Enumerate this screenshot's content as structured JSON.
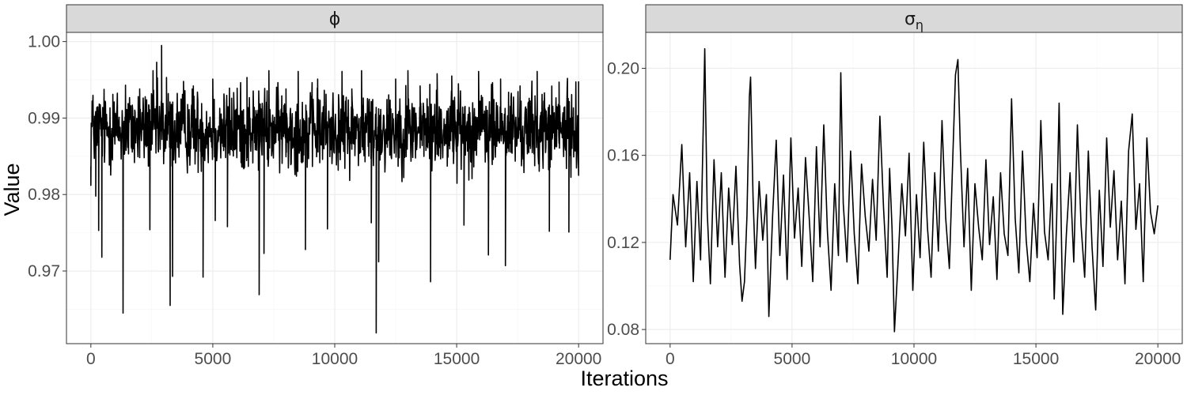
{
  "chart_data": {
    "type": "line",
    "xlabel": "Iterations",
    "ylabel": "Value",
    "grid": true,
    "panels": [
      {
        "strip_label": "ϕ",
        "strip_sub": "",
        "xlim": [
          -1000,
          21000
        ],
        "ylim": [
          0.9605,
          1.0012
        ],
        "x_ticks": [
          0,
          5000,
          10000,
          15000,
          20000
        ],
        "x_tick_labels": [
          "0",
          "5000",
          "10000",
          "15000",
          "20000"
        ],
        "y_ticks": [
          0.97,
          0.98,
          0.99,
          1.0
        ],
        "y_tick_labels": [
          "0.97",
          "0.98",
          "0.99",
          "1.00"
        ],
        "series": [
          {
            "trace_mean": 0.9885,
            "trace_spread": 0.0042,
            "x_range": [
              0,
              20000
            ],
            "points": [
              [
                0,
                0.9812
              ],
              [
                50,
                0.9922
              ],
              [
                100,
                0.9903
              ],
              [
                200,
                0.9798
              ],
              [
                320,
                0.9753
              ],
              [
                450,
                0.9718
              ],
              [
                540,
                0.9935
              ],
              [
                900,
                0.9931
              ],
              [
                1320,
                0.9645
              ],
              [
                1420,
                0.9943
              ],
              [
                1700,
                0.9917
              ],
              [
                2000,
                0.9938
              ],
              [
                2420,
                0.9754
              ],
              [
                2550,
                0.9962
              ],
              [
                2700,
                0.9973
              ],
              [
                2900,
                0.9995
              ],
              [
                3100,
                0.9953
              ],
              [
                3250,
                0.9655
              ],
              [
                3350,
                0.9693
              ],
              [
                3800,
                0.9948
              ],
              [
                4200,
                0.9942
              ],
              [
                4600,
                0.9692
              ],
              [
                5000,
                0.9951
              ],
              [
                5100,
                0.9766
              ],
              [
                5600,
                0.9758
              ],
              [
                6000,
                0.9939
              ],
              [
                6400,
                0.9953
              ],
              [
                6900,
                0.9669
              ],
              [
                7100,
                0.9723
              ],
              [
                7300,
                0.9962
              ],
              [
                8000,
                0.9938
              ],
              [
                8500,
                0.9961
              ],
              [
                8800,
                0.9728
              ],
              [
                9300,
                0.9951
              ],
              [
                9700,
                0.9755
              ],
              [
                10300,
                0.9961
              ],
              [
                10700,
                0.9938
              ],
              [
                11100,
                0.9962
              ],
              [
                11500,
                0.9763
              ],
              [
                11700,
                0.9619
              ],
              [
                11800,
                0.9712
              ],
              [
                12500,
                0.9951
              ],
              [
                13000,
                0.9962
              ],
              [
                13500,
                0.9942
              ],
              [
                13930,
                0.9686
              ],
              [
                14200,
                0.9958
              ],
              [
                14800,
                0.9955
              ],
              [
                15300,
                0.976
              ],
              [
                15900,
                0.9961
              ],
              [
                16300,
                0.9721
              ],
              [
                16800,
                0.9951
              ],
              [
                17000,
                0.9707
              ],
              [
                17600,
                0.9942
              ],
              [
                18300,
                0.9961
              ],
              [
                18800,
                0.9752
              ],
              [
                19200,
                0.9947
              ],
              [
                19600,
                0.9751
              ],
              [
                20000,
                0.9948
              ]
            ]
          }
        ]
      },
      {
        "strip_label": "σ",
        "strip_sub": "η",
        "xlim": [
          -1000,
          21000
        ],
        "ylim": [
          0.0735,
          0.2165
        ],
        "x_ticks": [
          0,
          5000,
          10000,
          15000,
          20000
        ],
        "x_tick_labels": [
          "0",
          "5000",
          "10000",
          "15000",
          "20000"
        ],
        "y_ticks": [
          0.08,
          0.12,
          0.16,
          0.2
        ],
        "y_tick_labels": [
          "0.08",
          "0.12",
          "0.16",
          "0.20"
        ],
        "series": [
          {
            "x": [
              0,
              120,
              300,
              480,
              640,
              800,
              950,
              1100,
              1250,
              1350,
              1420,
              1520,
              1650,
              1800,
              1950,
              2100,
              2250,
              2400,
              2550,
              2700,
              2850,
              2950,
              3050,
              3150,
              3250,
              3300,
              3400,
              3500,
              3650,
              3800,
              3950,
              4050,
              4200,
              4350,
              4500,
              4650,
              4800,
              4950,
              5100,
              5250,
              5400,
              5550,
              5700,
              5850,
              6000,
              6150,
              6300,
              6450,
              6600,
              6750,
              6900,
              7000,
              7100,
              7250,
              7400,
              7550,
              7700,
              7850,
              8000,
              8150,
              8300,
              8450,
              8600,
              8750,
              8900,
              9000,
              9100,
              9200,
              9350,
              9500,
              9650,
              9800,
              9950,
              10100,
              10250,
              10400,
              10550,
              10700,
              10850,
              11000,
              11150,
              11300,
              11450,
              11600,
              11700,
              11800,
              11900,
              12050,
              12200,
              12350,
              12500,
              12650,
              12800,
              12950,
              13100,
              13250,
              13400,
              13550,
              13700,
              13850,
              14000,
              14150,
              14300,
              14450,
              14600,
              14750,
              14900,
              15050,
              15200,
              15350,
              15500,
              15650,
              15750,
              15850,
              15950,
              16100,
              16250,
              16400,
              16550,
              16700,
              16850,
              17000,
              17150,
              17300,
              17450,
              17600,
              17750,
              17900,
              18050,
              18200,
              18350,
              18500,
              18650,
              18800,
              18950,
              19100,
              19250,
              19400,
              19550,
              19700,
              19850,
              20000
            ],
            "values": [
              0.112,
              0.142,
              0.128,
              0.165,
              0.118,
              0.152,
              0.102,
              0.148,
              0.112,
              0.168,
              0.209,
              0.134,
              0.101,
              0.158,
              0.118,
              0.152,
              0.104,
              0.145,
              0.119,
              0.155,
              0.11,
              0.093,
              0.102,
              0.132,
              0.187,
              0.196,
              0.141,
              0.108,
              0.148,
              0.121,
              0.142,
              0.086,
              0.132,
              0.167,
              0.114,
              0.151,
              0.103,
              0.168,
              0.122,
              0.145,
              0.109,
              0.159,
              0.132,
              0.102,
              0.164,
              0.118,
              0.174,
              0.125,
              0.098,
              0.147,
              0.114,
              0.198,
              0.138,
              0.111,
              0.162,
              0.124,
              0.101,
              0.156,
              0.132,
              0.116,
              0.149,
              0.121,
              0.178,
              0.136,
              0.104,
              0.154,
              0.126,
              0.079,
              0.112,
              0.147,
              0.123,
              0.161,
              0.098,
              0.142,
              0.113,
              0.166,
              0.127,
              0.104,
              0.152,
              0.116,
              0.176,
              0.131,
              0.108,
              0.162,
              0.197,
              0.204,
              0.163,
              0.118,
              0.154,
              0.098,
              0.147,
              0.127,
              0.112,
              0.158,
              0.119,
              0.141,
              0.103,
              0.152,
              0.124,
              0.114,
              0.186,
              0.131,
              0.106,
              0.162,
              0.121,
              0.102,
              0.138,
              0.113,
              0.176,
              0.125,
              0.112,
              0.147,
              0.094,
              0.131,
              0.184,
              0.087,
              0.124,
              0.152,
              0.111,
              0.174,
              0.128,
              0.104,
              0.162,
              0.118,
              0.089,
              0.144,
              0.109,
              0.168,
              0.127,
              0.153,
              0.112,
              0.139,
              0.101,
              0.162,
              0.179,
              0.126,
              0.147,
              0.102,
              0.168,
              0.134,
              0.124,
              0.137
            ]
          }
        ]
      }
    ]
  }
}
